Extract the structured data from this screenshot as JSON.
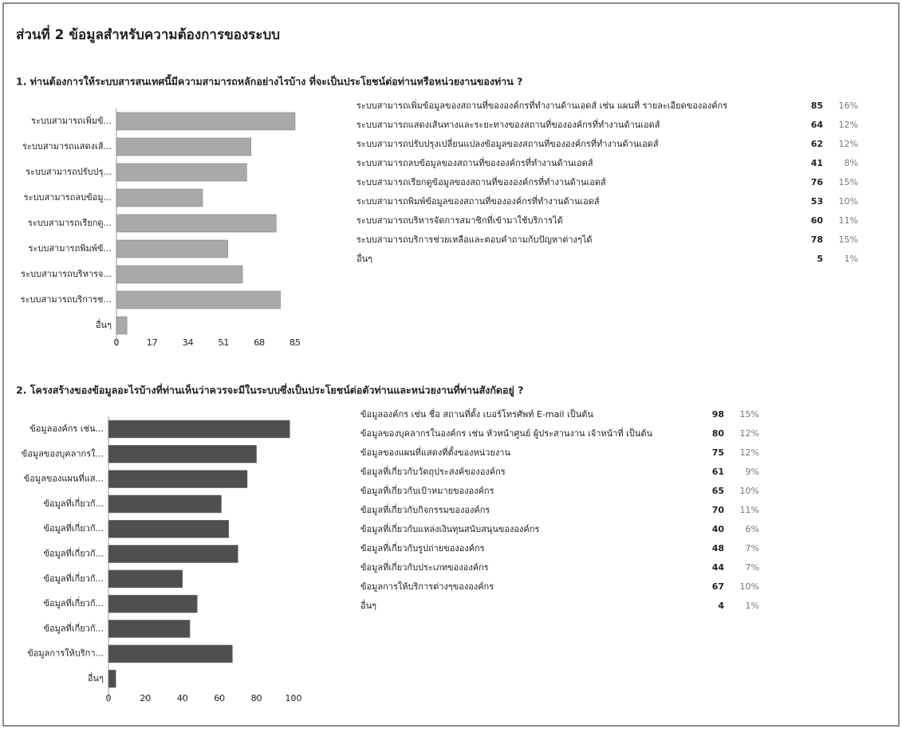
{
  "page_title": "ส่วนที่ 2 ข้อมูลสำหรับความต้องการของระบบ",
  "chart_data": [
    {
      "type": "bar",
      "orientation": "horizontal",
      "title": "1. ท่านต้องการให้ระบบสารสนเทศนี้มีความสามารถหลักอย่างไรบ้าง ที่จะเป็นประโยชน์ต่อท่านหรือหน่วยงานของท่าน ?",
      "categories": [
        "ระบบสามารถเพิ่มข้...",
        "ระบบสามารถแสดงเส้...",
        "ระบบสามารถปรับปรุ...",
        "ระบบสามารถลบข้อมู...",
        "ระบบสามารถเรียกดู...",
        "ระบบสามารถพิมพ์ข้...",
        "ระบบสามารถบริหารจ...",
        "ระบบสามารถบริการช...",
        "อื่นๆ"
      ],
      "values": [
        85,
        64,
        62,
        41,
        76,
        53,
        60,
        78,
        5
      ],
      "color": "#a9a9a9",
      "xlim": [
        0,
        85
      ],
      "xticks": [
        0,
        17,
        34,
        51,
        68,
        85
      ],
      "table_labels": [
        "ระบบสามารถเพิ่มข้อมูลของสถานที่ขององค์กรที่ทำงานด้านเอดส์ เช่น แผนที่ รายละเอียดขององค์กร",
        "ระบบสามารถแสดงเส้นทางและระยะทางของสถานที่ขององค์กรที่ทำงานด้านเอดส์",
        "ระบบสามารถปรับปรุงเปลี่ยนแปลงข้อมูลของสถานที่ขององค์กรที่ทำงานด้านเอดส์",
        "ระบบสามารถลบข้อมูลของสถานที่ขององค์กรที่ทำงานด้านเอดส์",
        "ระบบสามารถเรียกดูข้อมูลของสถานที่ขององค์กรที่ทำงานด้านเอดส์",
        "ระบบสามารถพิมพ์ข้อมูลของสถานที่ขององค์กรที่ทำงานด้านเอดส์",
        "ระบบสามารถบริหารจัดการสมาชิกที่เข้ามาใช้บริการได้",
        "ระบบสามารถบริการช่วยเหลือและตอบคำถามกับปัญหาต่างๆได้",
        "อื่นๆ"
      ],
      "percent_labels": [
        "16%",
        "12%",
        "12%",
        "8%",
        "15%",
        "10%",
        "11%",
        "15%",
        "1%"
      ]
    },
    {
      "type": "bar",
      "orientation": "horizontal",
      "title": "2. โครงสร้างของข้อมูลอะไรบ้างที่ท่านเห็นว่าควรจะมีในระบบซึ่งเป็นประโยชน์ต่อตัวท่านและหน่วยงานที่ท่านสังกัดอยู่ ?",
      "categories": [
        "ข้อมูลองค์กร เช่น...",
        "ข้อมูลของบุคลากรใ...",
        "ข้อมูลของแผนที่แส...",
        "ข้อมูลที่เกี่ยวกั...",
        "ข้อมูลที่เกี่ยวกั...",
        "ข้อมูลที่เกี่ยวกั...",
        "ข้อมูลที่เกี่ยวกั...",
        "ข้อมูลที่เกี่ยวกั...",
        "ข้อมูลที่เกี่ยวกั...",
        "ข้อมูลการให้บริกา...",
        "อื่นๆ"
      ],
      "values": [
        98,
        80,
        75,
        61,
        65,
        70,
        40,
        48,
        44,
        67,
        4
      ],
      "color": "#4f4f4f",
      "xlim": [
        0,
        100
      ],
      "xticks": [
        0,
        20,
        40,
        60,
        80,
        100
      ],
      "table_labels": [
        "ข้อมูลองค์กร เช่น ชื่อ สถานที่ตั้ง เบอร์โทรศัพท์ E-mail เป็นต้น",
        "ข้อมูลของบุคลากรในองค์กร เช่น หัวหน้าศูนย์ ผู้ประสานงาน เจ้าหน้าที่ เป็นต้น",
        "ข้อมูลของแผนที่แสดงที่ตั้งของหน่วยงาน",
        "ข้อมูลที่เกี่ยวกับวัตถุประสงค์ขององค์กร",
        "ข้อมูลที่เกี่ยวกับเป้าหมายขององค์กร",
        "ข้อมูลที่เกี่ยวกับกิจกรรมขององค์กร",
        "ข้อมูลที่เกี่ยวกับแหล่งเงินทุนสนับสนุนขององค์กร",
        "ข้อมูลที่เกี่ยวกับรูปถ่ายขององค์กร",
        "ข้อมูลที่เกี่ยวกับประเภทขององค์กร",
        "ข้อมูลการให้บริการต่างๆขององค์กร",
        "อื่นๆ"
      ],
      "percent_labels": [
        "15%",
        "12%",
        "12%",
        "9%",
        "10%",
        "11%",
        "6%",
        "7%",
        "7%",
        "10%",
        "1%"
      ]
    }
  ]
}
